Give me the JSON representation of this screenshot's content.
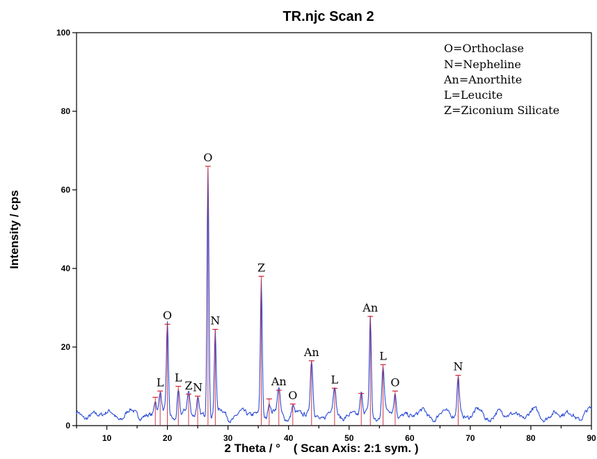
{
  "chart_data": {
    "type": "line",
    "title": "TR.njc Scan 2",
    "xlabel": "2 Theta / °",
    "xlabel_note": "( Scan Axis: 2:1 sym. )",
    "ylabel": "Intensity / cps",
    "xlim": [
      5,
      90
    ],
    "ylim": [
      0,
      100
    ],
    "xticks": [
      10,
      20,
      30,
      40,
      50,
      60,
      70,
      80,
      90
    ],
    "yticks": [
      0,
      20,
      40,
      60,
      80,
      100
    ],
    "line_color": "#2a4bd7",
    "marker_color": "#cc2233",
    "legend_position": "top-right",
    "legend": [
      "O=Orthoclase",
      "N=Nepheline",
      "An=Anorthite",
      "L=Leucite",
      "Z=Ziconium Silicate"
    ],
    "peaks": [
      {
        "x": 18.0,
        "y": 7.2,
        "label": ""
      },
      {
        "x": 18.8,
        "y": 8.8,
        "label": "L"
      },
      {
        "x": 20.0,
        "y": 25.8,
        "label": "O"
      },
      {
        "x": 21.8,
        "y": 10.0,
        "label": "L"
      },
      {
        "x": 23.5,
        "y": 8.0,
        "label": "Z"
      },
      {
        "x": 25.0,
        "y": 7.5,
        "label": "N"
      },
      {
        "x": 26.7,
        "y": 66.0,
        "label": "O"
      },
      {
        "x": 27.9,
        "y": 24.5,
        "label": "N"
      },
      {
        "x": 35.5,
        "y": 38.0,
        "label": "Z"
      },
      {
        "x": 36.8,
        "y": 6.8,
        "label": ""
      },
      {
        "x": 38.4,
        "y": 9.0,
        "label": "An"
      },
      {
        "x": 40.7,
        "y": 5.5,
        "label": "O"
      },
      {
        "x": 43.8,
        "y": 16.5,
        "label": "An"
      },
      {
        "x": 47.6,
        "y": 9.5,
        "label": "L"
      },
      {
        "x": 52.0,
        "y": 8.2,
        "label": ""
      },
      {
        "x": 53.5,
        "y": 27.8,
        "label": "An"
      },
      {
        "x": 55.6,
        "y": 15.5,
        "label": "L"
      },
      {
        "x": 57.6,
        "y": 8.8,
        "label": "O"
      },
      {
        "x": 68.0,
        "y": 12.8,
        "label": "N"
      }
    ]
  }
}
